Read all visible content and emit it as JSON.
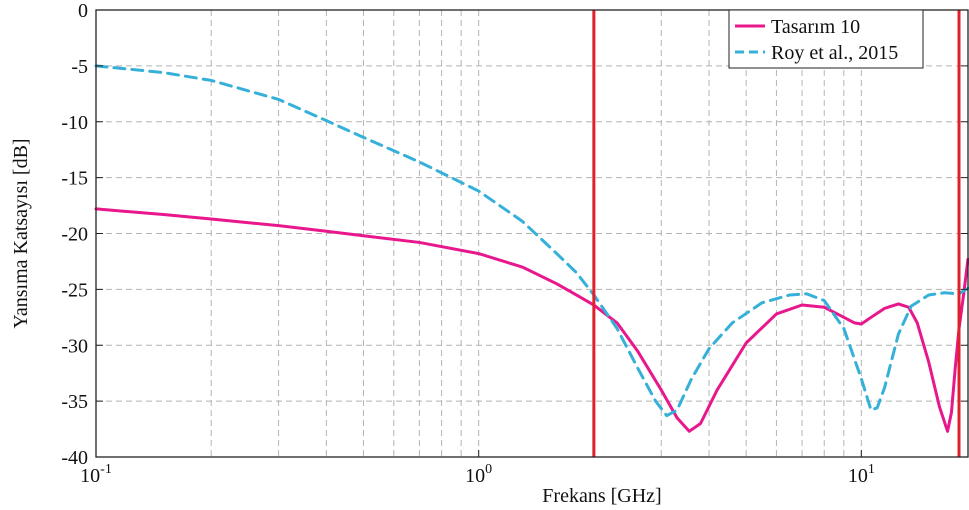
{
  "chart_data": {
    "type": "line",
    "title": "",
    "xlabel": "Frekans [GHz]",
    "ylabel": "Yansıma Katsayısı [dB]",
    "xscale": "log",
    "xlim": [
      0.1,
      19
    ],
    "ylim": [
      -40,
      0
    ],
    "grid": true,
    "legend_position": "top-right",
    "x_ticks": [
      {
        "value": 0.1,
        "base": "10",
        "exp": "-1"
      },
      {
        "value": 1,
        "base": "10",
        "exp": "0"
      },
      {
        "value": 10,
        "base": "10",
        "exp": "1"
      }
    ],
    "y_ticks": [
      0,
      -5,
      -10,
      -15,
      -20,
      -25,
      -30,
      -35,
      -40
    ],
    "vlines": {
      "color": "#e0202a",
      "x": [
        2,
        18
      ]
    },
    "series": [
      {
        "name": "Tasarım 10",
        "color": "#e8178c",
        "dash": "solid",
        "x": [
          0.1,
          0.15,
          0.2,
          0.3,
          0.4,
          0.5,
          0.7,
          1.0,
          1.3,
          1.6,
          1.8,
          2.0,
          2.3,
          2.6,
          3.0,
          3.3,
          3.55,
          3.8,
          4.2,
          5.0,
          6.0,
          7.0,
          8.0,
          9.0,
          9.6,
          10.0,
          10.5,
          11.5,
          12.5,
          13.3,
          14.0,
          15.0,
          16.0,
          16.8,
          17.2,
          17.6,
          18.0,
          18.5,
          19.0
        ],
        "y": [
          -17.8,
          -18.3,
          -18.7,
          -19.3,
          -19.8,
          -20.2,
          -20.8,
          -21.8,
          -23.0,
          -24.5,
          -25.5,
          -26.4,
          -28.0,
          -30.5,
          -34.0,
          -36.5,
          -37.7,
          -37.0,
          -34.0,
          -29.8,
          -27.2,
          -26.4,
          -26.6,
          -27.5,
          -28.0,
          -28.1,
          -27.6,
          -26.7,
          -26.3,
          -26.6,
          -28.0,
          -31.5,
          -35.5,
          -37.7,
          -36.0,
          -32.0,
          -28.5,
          -25.5,
          -22.3
        ]
      },
      {
        "name": "Roy et al., 2015",
        "color": "#35b0d8",
        "dash": "dashed",
        "x": [
          0.1,
          0.15,
          0.2,
          0.3,
          0.4,
          0.5,
          0.7,
          1.0,
          1.3,
          1.6,
          1.8,
          2.0,
          2.3,
          2.6,
          2.9,
          3.1,
          3.3,
          3.6,
          4.0,
          4.6,
          5.5,
          6.5,
          7.2,
          8.0,
          9.0,
          10.0,
          10.6,
          11.0,
          11.5,
          12.5,
          13.5,
          15.0,
          16.5,
          18.0,
          19.0
        ],
        "y": [
          -5.0,
          -5.6,
          -6.3,
          -8.0,
          -9.9,
          -11.4,
          -13.6,
          -16.2,
          -18.9,
          -21.8,
          -23.5,
          -25.5,
          -28.5,
          -32.0,
          -35.0,
          -36.3,
          -35.8,
          -33.0,
          -30.3,
          -28.0,
          -26.2,
          -25.5,
          -25.4,
          -26.0,
          -28.5,
          -33.0,
          -35.8,
          -35.6,
          -33.8,
          -29.0,
          -26.5,
          -25.5,
          -25.3,
          -25.4,
          -24.9
        ]
      }
    ]
  }
}
